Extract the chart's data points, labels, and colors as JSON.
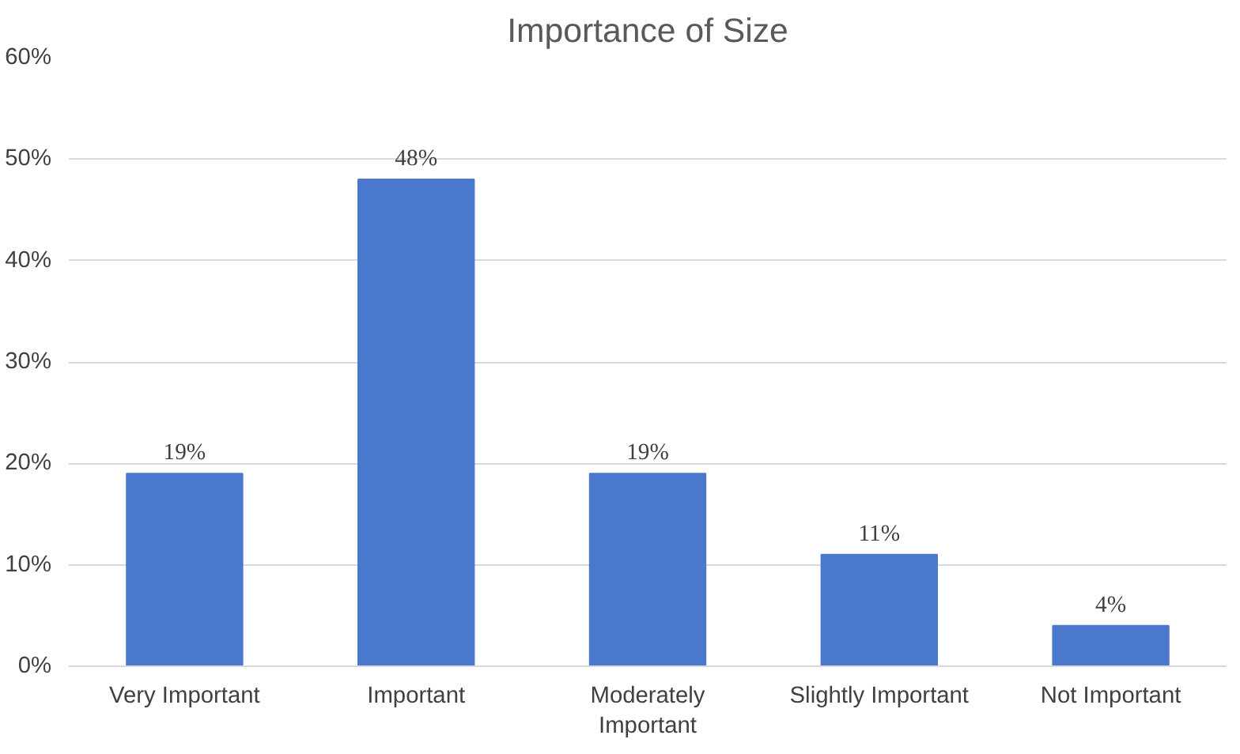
{
  "chart_data": {
    "type": "bar",
    "title": "Importance of Size",
    "categories": [
      "Very Important",
      "Important",
      "Moderately Important",
      "Slightly Important",
      "Not Important"
    ],
    "values": [
      19,
      48,
      19,
      11,
      4
    ],
    "value_labels": [
      "19%",
      "48%",
      "19%",
      "11%",
      "4%"
    ],
    "color": "#4a78cc",
    "ylim": [
      0,
      60
    ],
    "yticks": [
      {
        "value": 0,
        "label": "0%"
      },
      {
        "value": 10,
        "label": "10%"
      },
      {
        "value": 20,
        "label": "20%"
      },
      {
        "value": 30,
        "label": "30%"
      },
      {
        "value": 40,
        "label": "40%"
      },
      {
        "value": 50,
        "label": "50%"
      },
      {
        "value": 60,
        "label": "60%"
      }
    ],
    "grid": "y"
  }
}
